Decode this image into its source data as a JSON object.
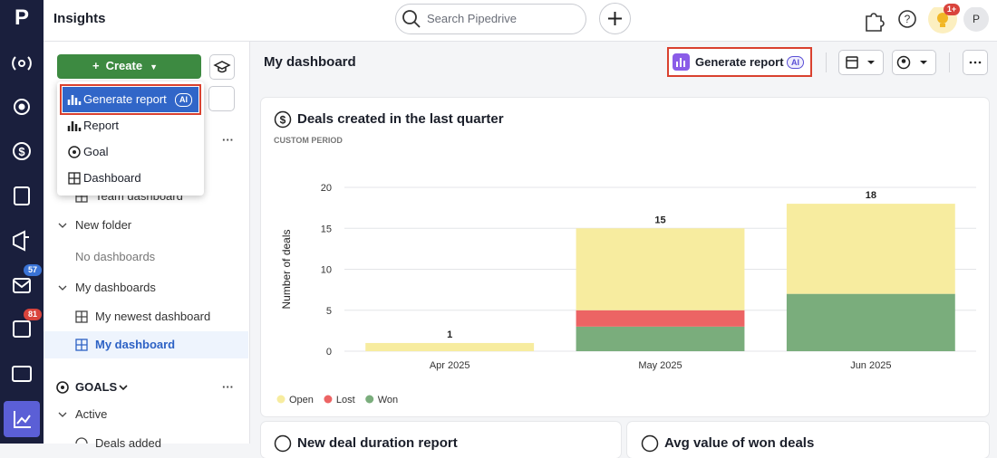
{
  "nav": {
    "logo": "P",
    "badges": [
      "57",
      "81"
    ]
  },
  "topbar": {
    "title": "Insights",
    "search_placeholder": "Search Pipedrive",
    "notification_badge": "1+",
    "avatar": "P"
  },
  "sidebar": {
    "create": "Create",
    "menu": [
      {
        "label": "Generate report",
        "badge": "AI"
      },
      {
        "label": "Report"
      },
      {
        "label": "Goal"
      },
      {
        "label": "Dashboard"
      }
    ],
    "items": [
      "Team dashboard",
      "New folder",
      "No dashboards",
      "My dashboards",
      "My newest dashboard",
      "My dashboard"
    ],
    "goals_heading": "GOALS",
    "goal_items": [
      "Active",
      "Deals added"
    ]
  },
  "main": {
    "title": "My dashboard",
    "generate_report": "Generate report",
    "ai_badge": "AI"
  },
  "chart_data": {
    "type": "bar",
    "stacked": true,
    "title": "Deals created in the last quarter",
    "subtitle": "CUSTOM PERIOD",
    "y_label": "Number of deals",
    "categories": [
      "Apr 2025",
      "May 2025",
      "Jun 2025"
    ],
    "series": [
      {
        "name": "Open",
        "color": "#f7ec9f",
        "values": [
          1,
          10,
          11
        ]
      },
      {
        "name": "Lost",
        "color": "#ec6464",
        "values": [
          0,
          2,
          0
        ]
      },
      {
        "name": "Won",
        "color": "#7aad7c",
        "values": [
          0,
          3,
          7
        ]
      }
    ],
    "totals": [
      1,
      15,
      18
    ],
    "ylim": [
      0,
      20
    ],
    "yticks": [
      0,
      5,
      10,
      15,
      20
    ],
    "grid": true,
    "legend": "bottom"
  },
  "bottom_cards": [
    "New deal duration report",
    "Avg value of won deals"
  ]
}
